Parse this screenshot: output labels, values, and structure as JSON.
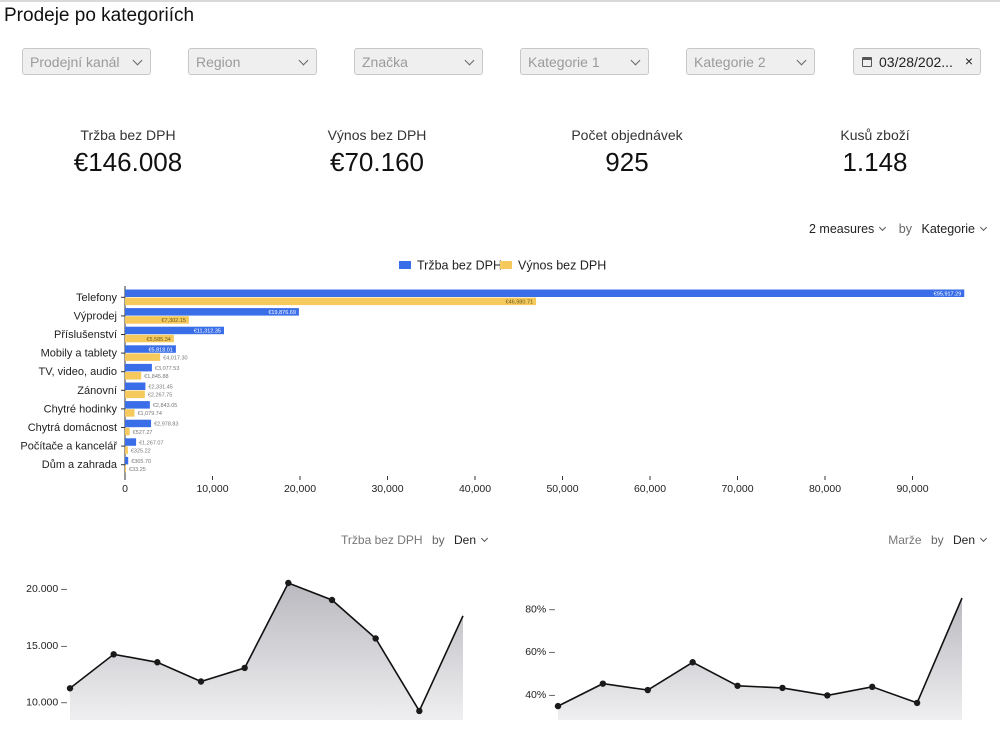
{
  "page": {
    "title": "Prodeje po kategoriích"
  },
  "filters": [
    {
      "label": "Prodejní kanál"
    },
    {
      "label": "Region"
    },
    {
      "label": "Značka"
    },
    {
      "label": "Kategorie 1"
    },
    {
      "label": "Kategorie 2"
    }
  ],
  "date_filter": {
    "value": "03/28/202...",
    "clear": "×"
  },
  "kpis": [
    {
      "label": "Tržba bez DPH",
      "value": "€146.008"
    },
    {
      "label": "Výnos bez DPH",
      "value": "€70.160"
    },
    {
      "label": "Počet objednávek",
      "value": "925"
    },
    {
      "label": "Kusů zboží",
      "value": "1.148"
    }
  ],
  "measure_selector": {
    "measures": "2 measures",
    "by": "by",
    "dimension": "Kategorie"
  },
  "colors": {
    "series1": "#3a6ee8",
    "series2": "#f5c95c",
    "area_fill": "#c7c7cc",
    "line": "#111111"
  },
  "chart_data": [
    {
      "type": "bar",
      "orientation": "horizontal",
      "categories": [
        "Telefony",
        "Výprodej",
        "Příslušenství",
        "Mobily a tablety",
        "TV, video, audio",
        "Zánovní",
        "Chytré hodinky",
        "Chytrá domácnost",
        "Počítače a kancelář",
        "Dům a zahrada"
      ],
      "series": [
        {
          "name": "Tržba bez DPH",
          "values": [
            95917.29,
            19876.69,
            11312.35,
            5818.01,
            3077.53,
            2331.45,
            2843.05,
            2978.83,
            1267.07,
            365.7
          ],
          "labels": [
            "€95,917.29",
            "€19,876.69",
            "€11,312.35",
            "€5,818.01",
            "€3,077.53",
            "€2,331.45",
            "€2,843.05",
            "€2,978.83",
            "€1,267.07",
            "€365.70"
          ]
        },
        {
          "name": "Výnos bez DPH",
          "values": [
            46980.71,
            7302.15,
            5585.34,
            4017.3,
            1845.88,
            2267.75,
            1079.74,
            527.27,
            325.22,
            33.25
          ],
          "labels": [
            "€46,980.71",
            "€7,302.15",
            "€5,585.34",
            "€4,017.30",
            "€1,845.88",
            "€2,267.75",
            "€1,079.74",
            "€527.27",
            "€325.22",
            "€33.25"
          ]
        }
      ],
      "xlim": [
        0,
        96000
      ],
      "x_ticks": [
        0,
        10000,
        20000,
        30000,
        40000,
        50000,
        60000,
        70000,
        80000,
        90000
      ],
      "x_tick_labels": [
        "0",
        "10,000",
        "20,000",
        "30,000",
        "40,000",
        "50,000",
        "60,000",
        "70,000",
        "80,000",
        "90,000"
      ],
      "legend": "top-center",
      "grid": false
    },
    {
      "type": "area",
      "measure": "Tržba bez DPH",
      "by": "by",
      "dimension": "Den",
      "values": [
        11200,
        14200,
        13500,
        11800,
        13000,
        20500,
        19000,
        15600,
        9200,
        17600
      ],
      "ylim": [
        8400,
        22000
      ],
      "y_ticks": [
        10000,
        15000,
        20000
      ],
      "y_tick_labels": [
        "10.000 –",
        "15.000 –",
        "20.000 –"
      ]
    },
    {
      "type": "area",
      "measure": "Marže",
      "by": "by",
      "dimension": "Den",
      "values": [
        34.5,
        45,
        42,
        55,
        44,
        43,
        39.5,
        43.5,
        36,
        85
      ],
      "ylim": [
        28,
        100
      ],
      "y_ticks": [
        40,
        60,
        80
      ],
      "y_tick_labels": [
        "40% –",
        "60% –",
        "80% –"
      ]
    }
  ]
}
